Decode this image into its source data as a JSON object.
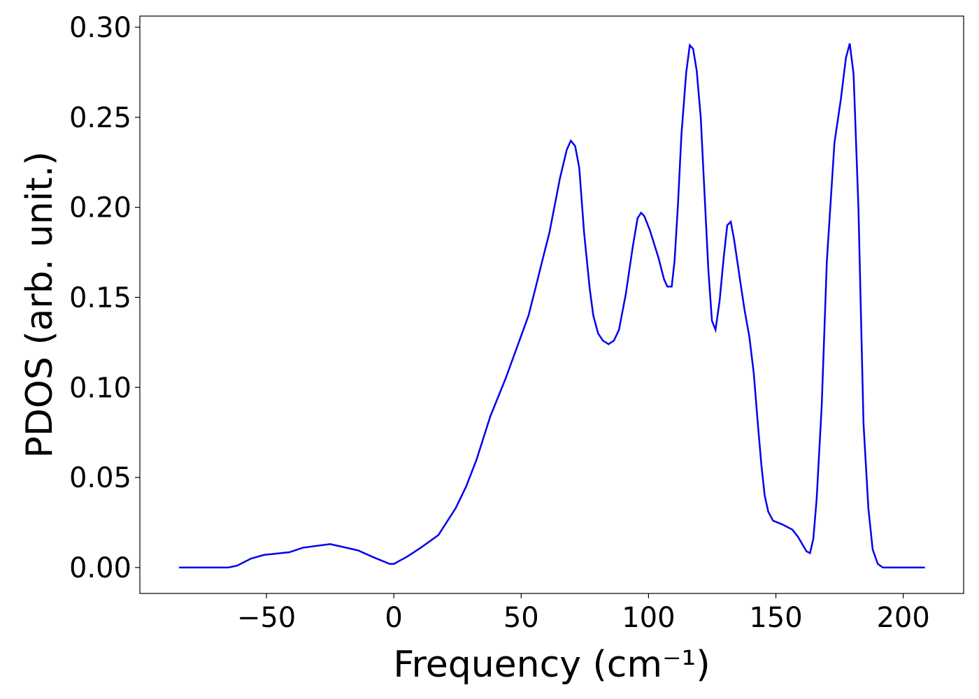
{
  "chart_data": {
    "type": "line",
    "x_label": "Frequency (cm⁻¹)",
    "y_label": "PDOS (arb. unit.)",
    "xlim": [
      -99.7,
      223.7
    ],
    "ylim": [
      -0.0144,
      0.3062
    ],
    "xticks": [
      {
        "value": -50,
        "label": "−50"
      },
      0,
      50,
      100,
      150,
      200
    ],
    "yticks": [
      {
        "value": 0,
        "label": "0.00"
      },
      {
        "value": 0.05,
        "label": "0.05"
      },
      {
        "value": 0.1,
        "label": "0.10"
      },
      {
        "value": 0.15,
        "label": "0.15"
      },
      {
        "value": 0.2,
        "label": "0.20"
      },
      {
        "value": 0.25,
        "label": "0.25"
      },
      {
        "value": 0.3,
        "label": "0.30"
      }
    ],
    "grid": false,
    "series": [
      {
        "color": "#0000ee",
        "x": [
          -84.3,
          -65,
          -61.6,
          -56,
          -51,
          -41,
          -35.7,
          -25,
          -14,
          -8.5,
          -1.6,
          0,
          5.2,
          10.6,
          17.5,
          24.3,
          28.4,
          32.5,
          37.9,
          43.9,
          48.8,
          52.9,
          55.6,
          58.4,
          61.1,
          65.2,
          67.9,
          69.5,
          71.2,
          72.8,
          74.7,
          76.9,
          78.3,
          80.2,
          82.1,
          84.3,
          86.4,
          88.4,
          91.1,
          93.8,
          95.7,
          97.1,
          98.4,
          100.6,
          103.9,
          106.1,
          107.4,
          109.1,
          110.2,
          111.5,
          112.9,
          114.8,
          116.2,
          117.5,
          118.9,
          120.5,
          121.9,
          123.5,
          124.9,
          126.3,
          127.9,
          129.5,
          130.9,
          132.3,
          133.6,
          136.1,
          137.7,
          139.6,
          141.3,
          142.9,
          144.3,
          145.6,
          147,
          148.9,
          152.4,
          156.5,
          158.7,
          162,
          163.4,
          164.7,
          166,
          168,
          170,
          173,
          175.5,
          177.5,
          179,
          180.5,
          182.4,
          184.4,
          186.3,
          188,
          190,
          192,
          208.5
        ],
        "values": [
          0,
          0,
          0.001,
          0.005,
          0.007,
          0.0085,
          0.011,
          0.013,
          0.0095,
          0.006,
          0.002,
          0.002,
          0.006,
          0.011,
          0.018,
          0.033,
          0.045,
          0.06,
          0.084,
          0.105,
          0.124,
          0.14,
          0.155,
          0.171,
          0.186,
          0.216,
          0.232,
          0.237,
          0.234,
          0.222,
          0.186,
          0.155,
          0.14,
          0.13,
          0.126,
          0.124,
          0.126,
          0.132,
          0.152,
          0.178,
          0.194,
          0.197,
          0.195,
          0.187,
          0.172,
          0.16,
          0.156,
          0.156,
          0.17,
          0.2,
          0.24,
          0.275,
          0.29,
          0.288,
          0.276,
          0.25,
          0.21,
          0.165,
          0.137,
          0.132,
          0.148,
          0.172,
          0.19,
          0.192,
          0.182,
          0.158,
          0.143,
          0.128,
          0.108,
          0.08,
          0.057,
          0.04,
          0.031,
          0.026,
          0.024,
          0.021,
          0.017,
          0.009,
          0.008,
          0.016,
          0.038,
          0.09,
          0.17,
          0.236,
          0.26,
          0.283,
          0.291,
          0.274,
          0.2,
          0.08,
          0.033,
          0.01,
          0.002,
          0,
          0
        ]
      }
    ]
  }
}
